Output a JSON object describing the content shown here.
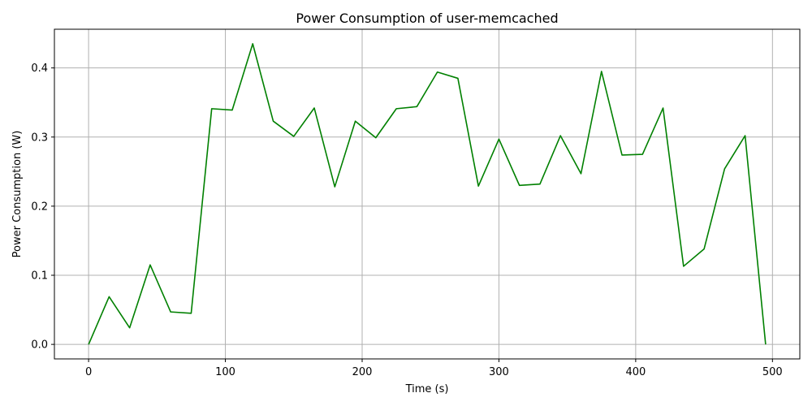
{
  "chart_data": {
    "type": "line",
    "title": "Power Consumption of user-memcached",
    "xlabel": "Time (s)",
    "ylabel": "Power Consumption (W)",
    "xlim": [
      -25.5,
      1020.0
    ],
    "ylim": [
      -0.021,
      0.456
    ],
    "xticks": [
      0,
      100,
      200,
      300,
      400,
      500
    ],
    "yticks": [
      0.0,
      0.1,
      0.2,
      0.3,
      0.4
    ],
    "xtick_labels": [
      "0",
      "100",
      "200",
      "300",
      "400",
      "500"
    ],
    "ytick_labels": [
      "0.0",
      "0.1",
      "0.2",
      "0.3",
      "0.4"
    ],
    "grid": true,
    "color": "#008000",
    "series": [
      {
        "x": [
          0,
          15,
          30,
          45,
          60,
          75,
          90,
          105,
          120,
          135,
          150,
          165,
          180,
          195,
          210,
          225,
          240,
          255,
          270,
          285,
          300,
          315,
          330,
          345,
          360,
          375,
          390,
          405,
          420,
          435,
          450,
          465,
          480,
          495
        ],
        "y": [
          0.0,
          0.069,
          0.024,
          0.115,
          0.047,
          0.045,
          0.341,
          0.339,
          0.435,
          0.323,
          0.301,
          0.342,
          0.228,
          0.323,
          0.299,
          0.341,
          0.344,
          0.394,
          0.385,
          0.229,
          0.297,
          0.23,
          0.232,
          0.302,
          0.247,
          0.395,
          0.274,
          0.275,
          0.342,
          0.113,
          0.138,
          0.254,
          0.302,
          0.0
        ]
      }
    ]
  }
}
